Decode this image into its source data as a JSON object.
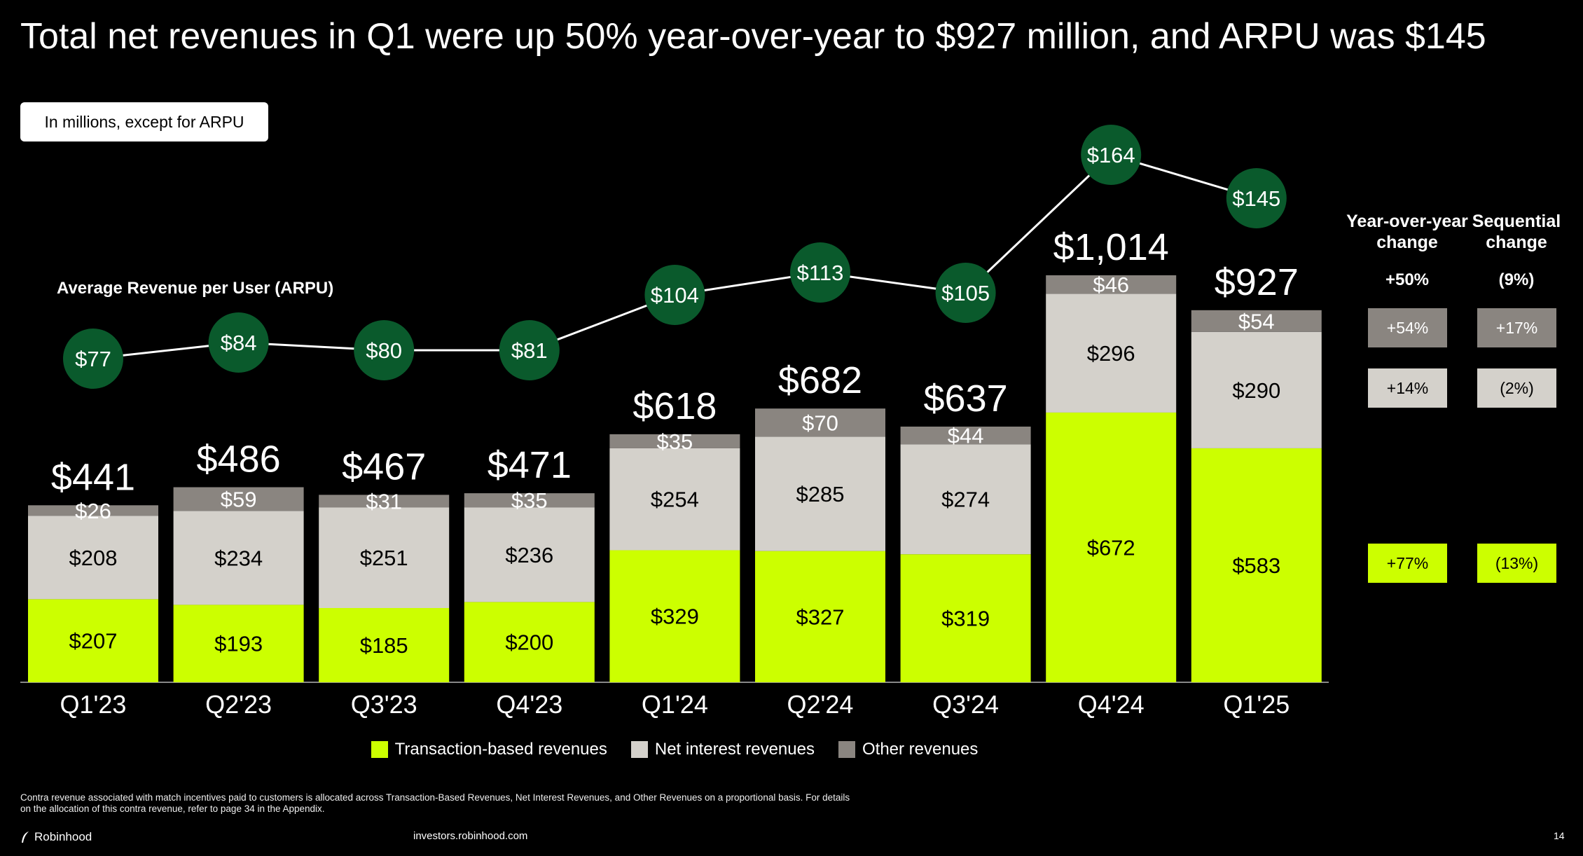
{
  "title": "Total net revenues in Q1 were up 50% year-over-year to $927 million, and ARPU was $145",
  "unit_note": "In millions, except for ARPU",
  "chart_data": {
    "type": "bar",
    "stacked": true,
    "categories": [
      "Q1'23",
      "Q2'23",
      "Q3'23",
      "Q4'23",
      "Q1'24",
      "Q2'24",
      "Q3'24",
      "Q4'24",
      "Q1'25"
    ],
    "series": [
      {
        "name": "Transaction-based revenues",
        "color": "#ccff00",
        "values": [
          207,
          193,
          185,
          200,
          329,
          327,
          319,
          672,
          583
        ]
      },
      {
        "name": "Net interest revenues",
        "color": "#d4d1cb",
        "values": [
          208,
          234,
          251,
          236,
          254,
          285,
          274,
          296,
          290
        ]
      },
      {
        "name": "Other revenues",
        "color": "#8a8580",
        "values": [
          26,
          59,
          31,
          35,
          35,
          70,
          44,
          46,
          54
        ]
      }
    ],
    "totals": [
      441,
      486,
      467,
      471,
      618,
      682,
      637,
      1014,
      927
    ],
    "total_labels": [
      "$441",
      "$486",
      "$467",
      "$471",
      "$618",
      "$682",
      "$637",
      "$1,014",
      "$927"
    ],
    "arpu": {
      "title": "Average Revenue per User (ARPU)",
      "type": "line",
      "values": [
        77,
        84,
        80,
        81,
        104,
        113,
        105,
        164,
        145
      ],
      "color": "#0a5a2c"
    },
    "legend_position": "bottom"
  },
  "changes": {
    "headers": [
      "Year-over-year change",
      "Sequential change"
    ],
    "total": [
      "+50%",
      "(9%)"
    ],
    "rows": [
      {
        "series": "Other revenues",
        "yoy": "+54%",
        "seq": "+17%"
      },
      {
        "series": "Net interest revenues",
        "yoy": "+14%",
        "seq": "(2%)"
      },
      {
        "series": "Transaction-based revenues",
        "yoy": "+77%",
        "seq": "(13%)"
      }
    ]
  },
  "footnote": "Contra revenue associated with match incentives paid to customers is allocated across Transaction-Based Revenues, Net Interest Revenues, and Other Revenues on a proportional basis. For details on the allocation of this contra revenue, refer to page 34 in the Appendix.",
  "footer": {
    "brand": "Robinhood",
    "site": "investors.robinhood.com",
    "page": "14"
  }
}
